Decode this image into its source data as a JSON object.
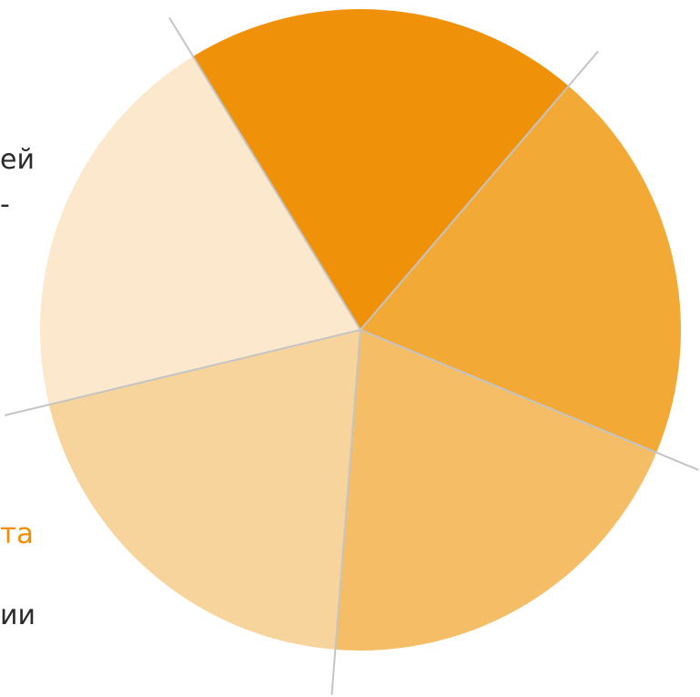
{
  "chart_data": {
    "type": "pie",
    "title": "",
    "slices": [
      {
        "value": 20,
        "color": "#f0910a"
      },
      {
        "value": 20,
        "color": "#f3a936"
      },
      {
        "value": 20,
        "color": "#f4bd66"
      },
      {
        "value": 20,
        "color": "#f8d49d"
      },
      {
        "value": 20,
        "color": "#fce8cc"
      }
    ],
    "divider_color": "#c4c4c4"
  },
  "text_fragments": {
    "line_1": "ей",
    "line_2": "-",
    "line_3": "та",
    "line_4": "ии"
  },
  "colors": {
    "text": "#2b2b2b",
    "accent": "#ef8f00"
  }
}
